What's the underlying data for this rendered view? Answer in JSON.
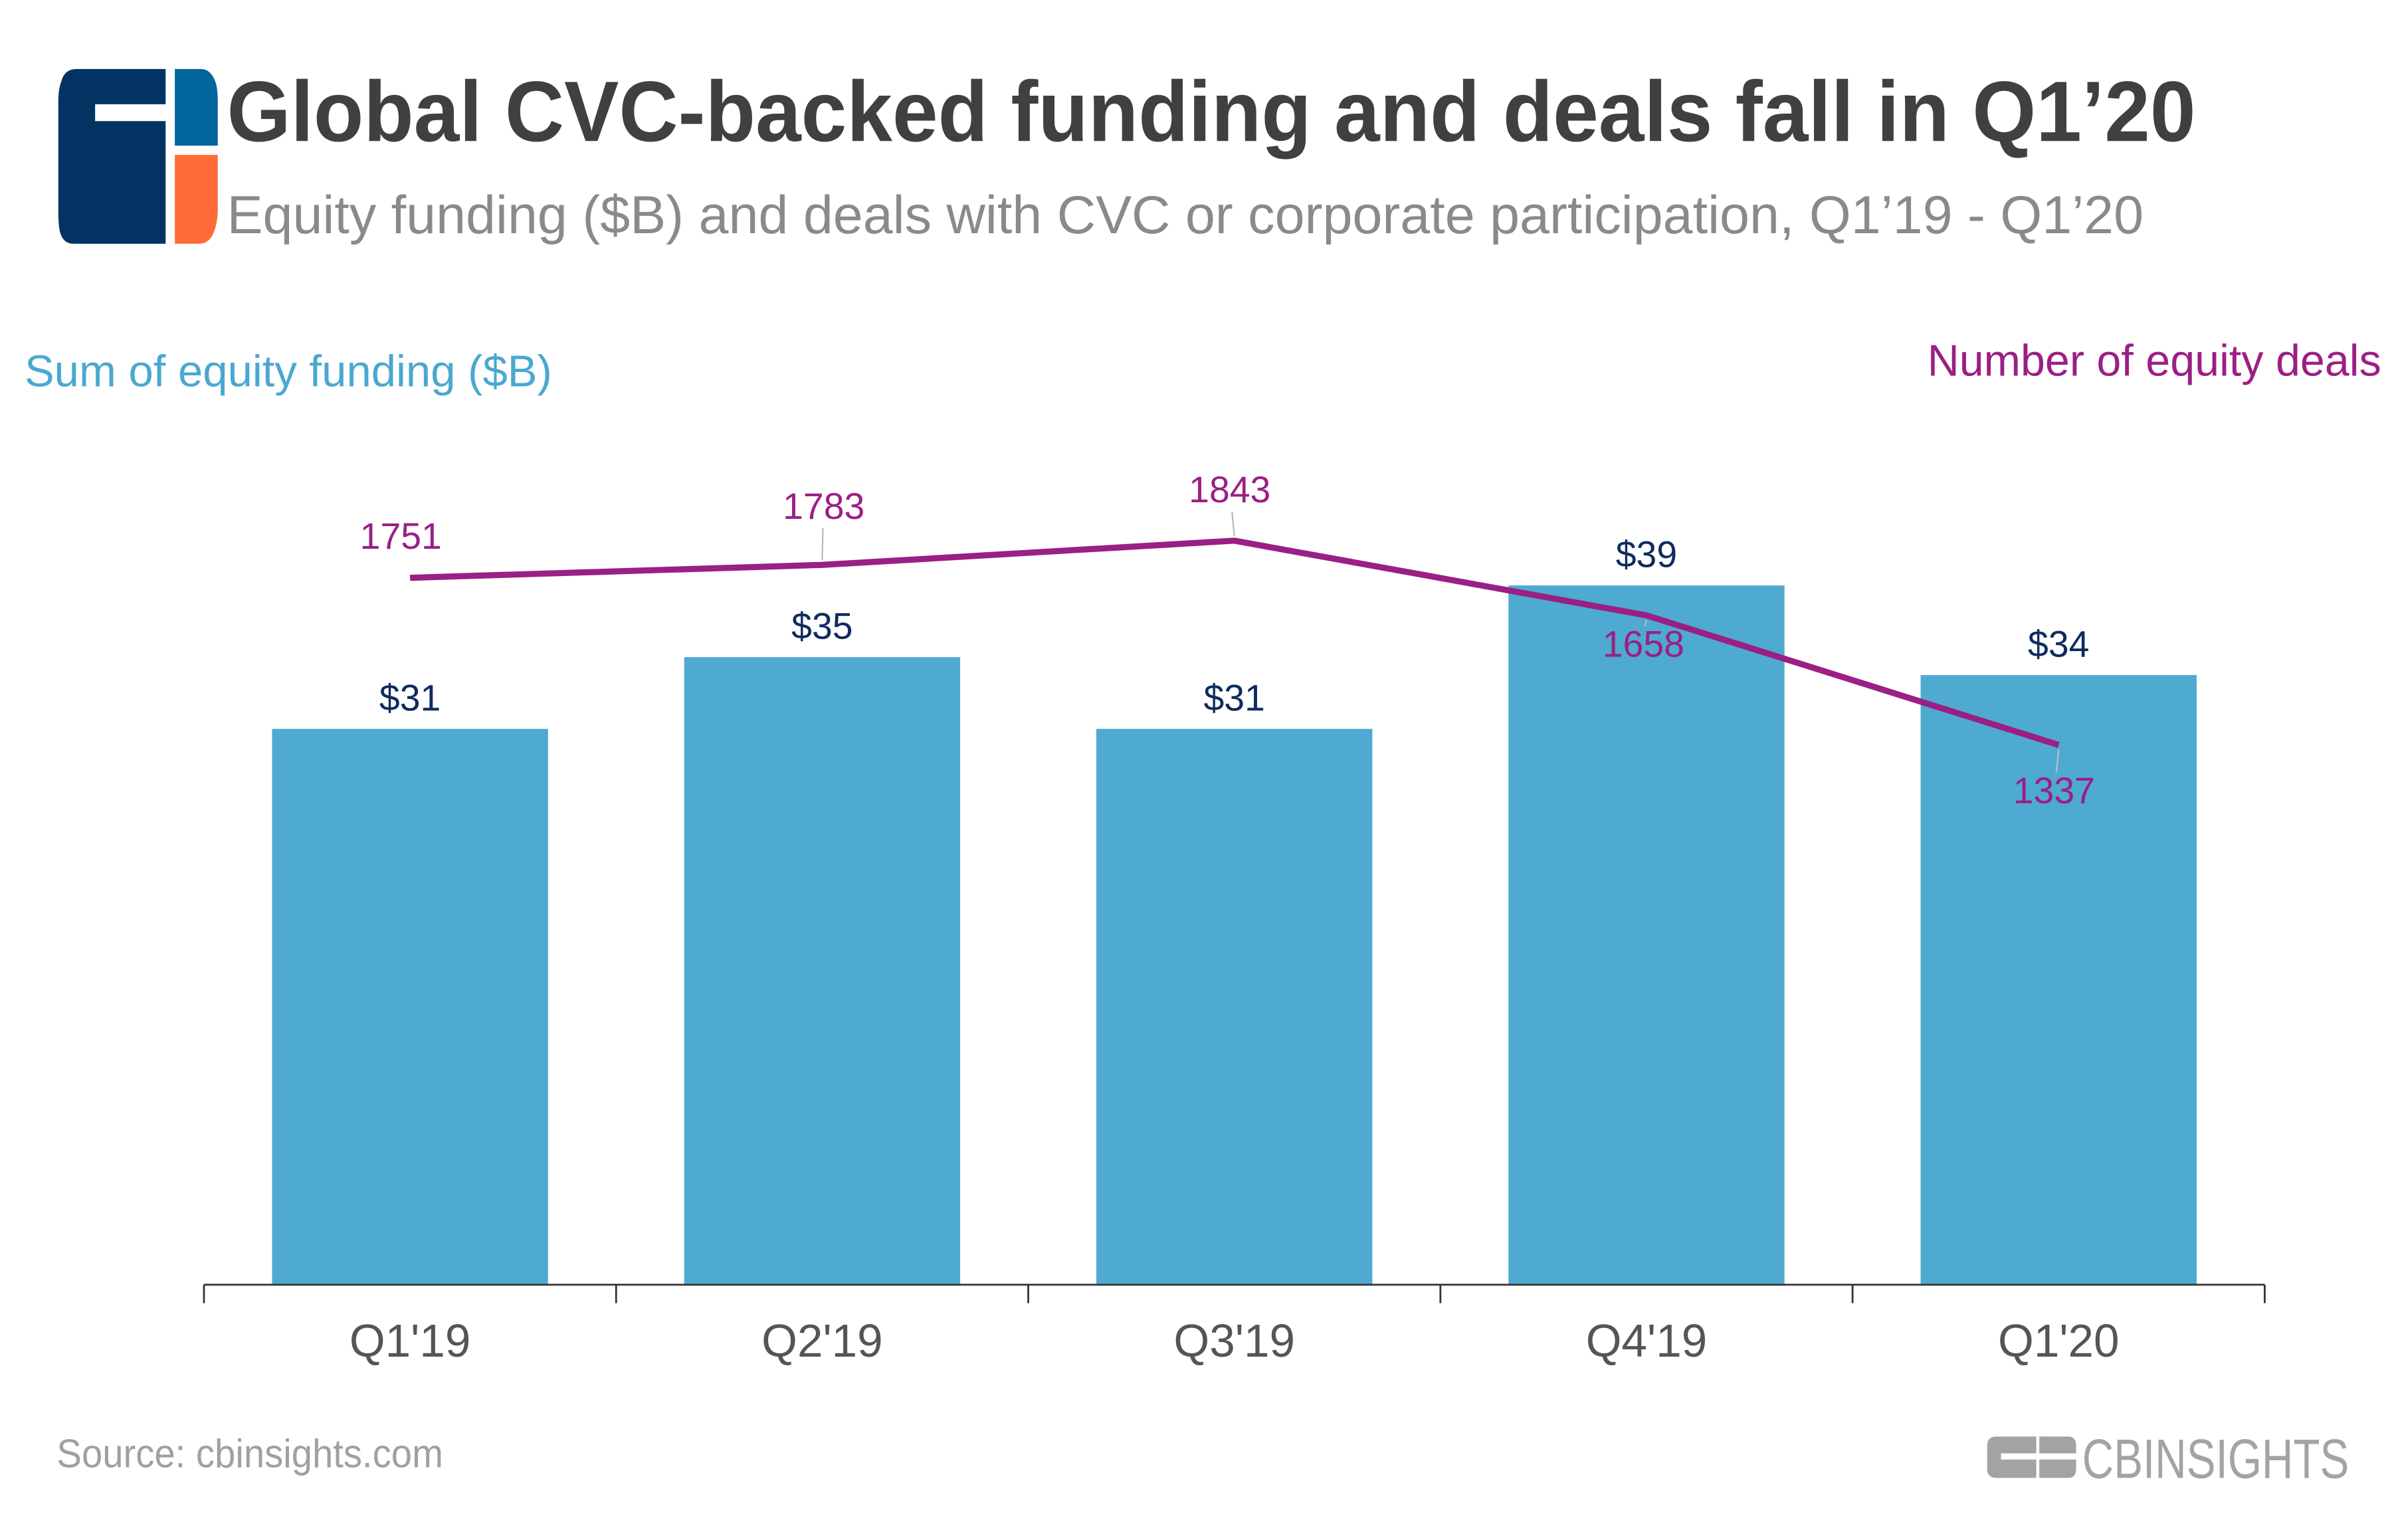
{
  "header": {
    "title": "Global CVC-backed funding and deals fall in Q1’20",
    "subtitle": "Equity funding ($B) and deals with CVC or corporate participation, Q1’19 - Q1’20"
  },
  "footer": {
    "source": "Source: cbinsights.com",
    "brand": "CBINSIGHTS"
  },
  "colors": {
    "bar": "#4eaad0",
    "line": "#9b1f84",
    "bar_label": "#0d2b5e",
    "logo_navy": "#033363",
    "logo_blue": "#02659b",
    "logo_orange": "#ff6b36"
  },
  "chart_data": {
    "type": "bar+line",
    "categories": [
      "Q1'19",
      "Q2'19",
      "Q3'19",
      "Q4'19",
      "Q1'20"
    ],
    "series": [
      {
        "name": "Sum of equity funding ($B)",
        "type": "bar",
        "axis": "left",
        "values": [
          31,
          35,
          31,
          39,
          34
        ],
        "labels": [
          "$31",
          "$35",
          "$31",
          "$39",
          "$34"
        ]
      },
      {
        "name": "Number of equity deals",
        "type": "line",
        "axis": "right",
        "values": [
          1751,
          1783,
          1843,
          1658,
          1337
        ],
        "labels": [
          "1751",
          "1783",
          "1843",
          "1658",
          "1337"
        ]
      }
    ],
    "ylabel_left": "Sum of equity funding ($B)",
    "ylabel_right": "Number of equity deals",
    "ylim_left": [
      0,
      46
    ],
    "ylim_right": [
      0,
      2043
    ],
    "grid": false
  }
}
